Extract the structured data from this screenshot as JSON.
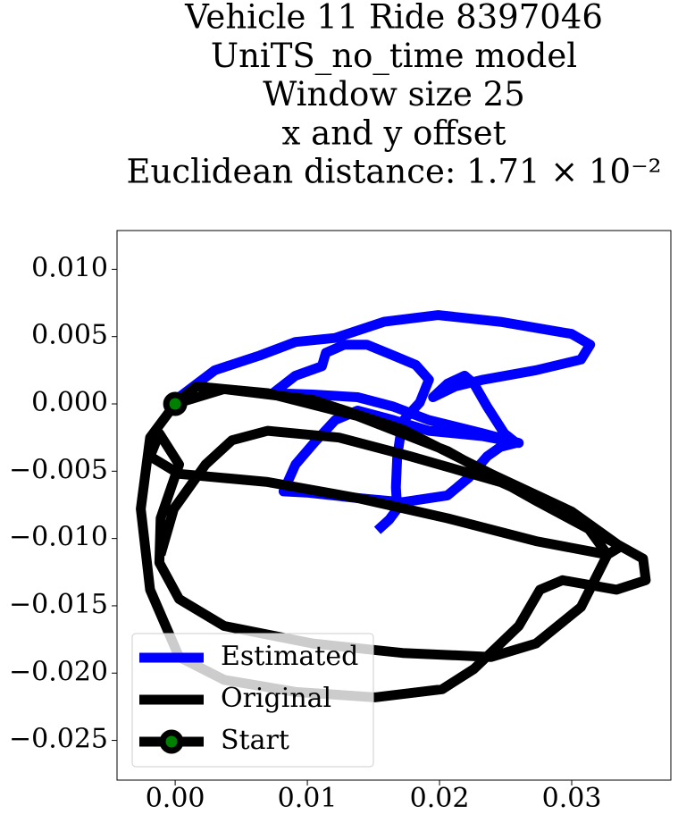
{
  "chart_data": {
    "type": "line",
    "title": [
      "Vehicle 11 Ride 8397046",
      "UniTS_no_time model",
      "Window size 25",
      "x and y offset",
      "Euclidean distance: 1.71 × 10⁻²"
    ],
    "xlim": [
      -0.0044,
      0.0375
    ],
    "ylim": [
      -0.02795,
      0.01288
    ],
    "xticks": [
      {
        "value": 0,
        "label": "0.00"
      },
      {
        "value": 0.01,
        "label": "0.01"
      },
      {
        "value": 0.02,
        "label": "0.02"
      },
      {
        "value": 0.03,
        "label": "0.03"
      }
    ],
    "yticks": [
      {
        "value": 0.01,
        "label": "0.010"
      },
      {
        "value": 0.005,
        "label": "0.005"
      },
      {
        "value": 0,
        "label": "0.000"
      },
      {
        "value": -0.005,
        "label": "−0.005"
      },
      {
        "value": -0.01,
        "label": "−0.010"
      },
      {
        "value": -0.015,
        "label": "−0.015"
      },
      {
        "value": -0.02,
        "label": "−0.020"
      },
      {
        "value": -0.025,
        "label": "−0.025"
      }
    ],
    "grid": false,
    "legend": "lower left",
    "series": [
      {
        "name": "Estimated",
        "color": "#0000ff",
        "x": [
          0.0003,
          0.003,
          0.0064,
          0.0091,
          0.0121,
          0.0158,
          0.0199,
          0.0246,
          0.03,
          0.0314,
          0.0307,
          0.0273,
          0.0233,
          0.0212,
          0.0195,
          0.0206,
          0.0219,
          0.0226,
          0.0236,
          0.0249,
          0.0258,
          0.0246,
          0.0236,
          0.0222,
          0.0206,
          0.0172,
          0.0138,
          0.0101,
          0.0082,
          0.0091,
          0.0105,
          0.0121,
          0.0138,
          0.0165,
          0.0192,
          0.0233,
          0.026,
          0.0233,
          0.0192,
          0.0165,
          0.0138,
          0.0104,
          0.0074,
          0.0091,
          0.0111,
          0.0114,
          0.0128,
          0.0145,
          0.0165,
          0.0182,
          0.0192,
          0.0185,
          0.0172,
          0.0168,
          0.0167,
          0.0168,
          0.0162,
          0.0153
        ],
        "y": [
          0.0005,
          0.0025,
          0.0036,
          0.0046,
          0.0049,
          0.0061,
          0.0066,
          0.0061,
          0.0052,
          0.0044,
          0.0033,
          0.0025,
          0.0018,
          0.0013,
          0.0005,
          0.0015,
          0.0021,
          0.0015,
          -0.0002,
          -0.0022,
          -0.0029,
          -0.0032,
          -0.0039,
          -0.0055,
          -0.0068,
          -0.0073,
          -0.007,
          -0.0066,
          -0.0065,
          -0.0045,
          -0.0029,
          -0.0012,
          -0.0005,
          -0.0012,
          -0.002,
          -0.0024,
          -0.0029,
          -0.0022,
          -0.0012,
          -0.0002,
          0.0005,
          0.0007,
          0.0008,
          0.0021,
          0.0028,
          0.0038,
          0.0044,
          0.0044,
          0.0036,
          0.0029,
          0.0018,
          0.0001,
          -0.0013,
          -0.0039,
          -0.0062,
          -0.0078,
          -0.0086,
          -0.0094
        ]
      },
      {
        "name": "Original",
        "color": "#000000",
        "x": [
          0,
          0.0016,
          0.007,
          0.0138,
          0.0206,
          0.0273,
          0.0334,
          0.0354,
          0.0356,
          0.0334,
          0.0293,
          0.0276,
          0.026,
          0.0226,
          0.0202,
          0.0151,
          0.0091,
          0.0037,
          0.0003,
          -0.0019,
          -0.0026,
          -0.0019,
          0,
          0.0037,
          0.0104,
          0.0172,
          0.0239,
          0.03,
          0.0337,
          0.0327,
          0.0273,
          0.0206,
          0.0138,
          0.007,
          0.0003,
          -0.0019,
          -0.0012,
          0.0003,
          -0.0011,
          -0.0012,
          0.0003,
          0.0037,
          0.0104,
          0.0172,
          0.0239,
          0.0273,
          0.0307,
          0.0327,
          0.0307,
          0.0246,
          0.0178,
          0.0124,
          0.007,
          0.0043,
          0.0023,
          -0.0001,
          -0.0011
        ],
        "y": [
          0,
          0.0013,
          0.0008,
          -0.0009,
          -0.0035,
          -0.0072,
          -0.0104,
          -0.0115,
          -0.0131,
          -0.0138,
          -0.0131,
          -0.0138,
          -0.0165,
          -0.0197,
          -0.0212,
          -0.0218,
          -0.0214,
          -0.0205,
          -0.0188,
          -0.0138,
          -0.0078,
          -0.0025,
          0,
          0.0011,
          0.0003,
          -0.0019,
          -0.0052,
          -0.008,
          -0.0106,
          -0.0112,
          -0.0102,
          -0.0085,
          -0.007,
          -0.0058,
          -0.0052,
          -0.0039,
          -0.0022,
          -0.0045,
          -0.0085,
          -0.0118,
          -0.0145,
          -0.0165,
          -0.0178,
          -0.0185,
          -0.0188,
          -0.0178,
          -0.0151,
          -0.0112,
          -0.0085,
          -0.0058,
          -0.0039,
          -0.0025,
          -0.002,
          -0.0027,
          -0.0045,
          -0.0078,
          -0.0112
        ]
      }
    ],
    "start": {
      "name": "Start",
      "x": 0,
      "y": 0,
      "color": "#008000",
      "edge_color": "#000000"
    }
  }
}
